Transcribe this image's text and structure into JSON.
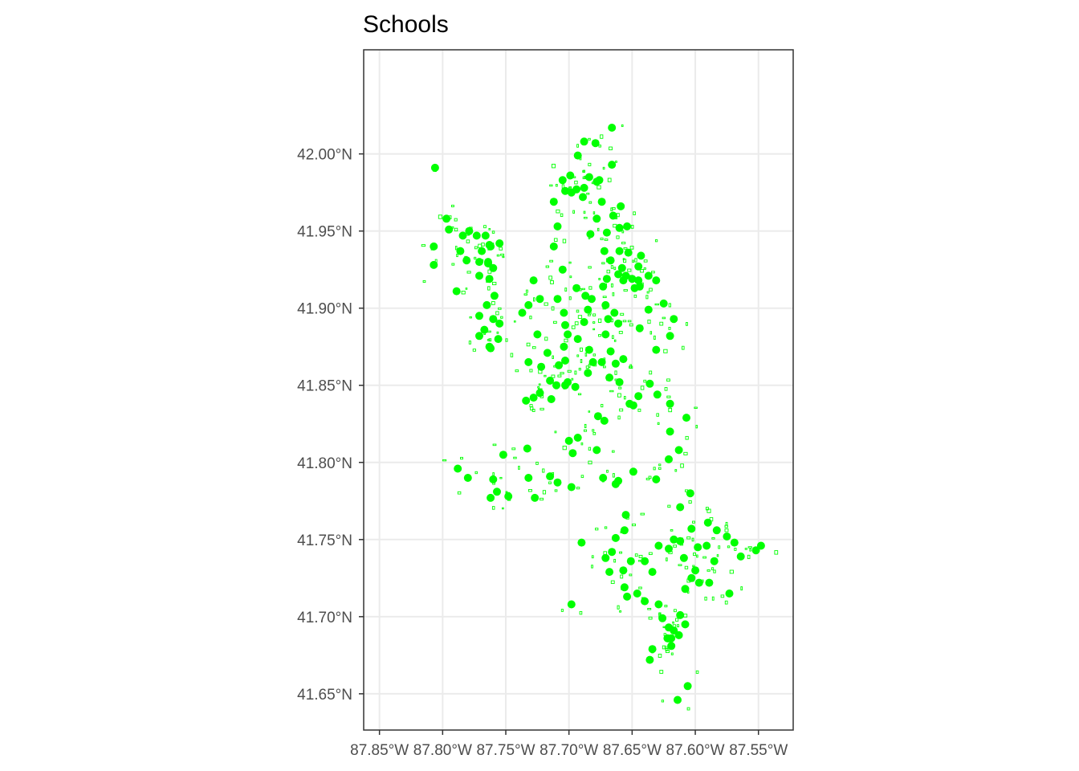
{
  "chart_data": {
    "type": "scatter",
    "title": "Schools",
    "xlabel": "",
    "ylabel": "",
    "xlim": [
      -87.8625,
      -87.5225
    ],
    "ylim": [
      41.6265,
      42.0675
    ],
    "x_ticks": [
      {
        "value": -87.85,
        "label": "87.85°W"
      },
      {
        "value": -87.8,
        "label": "87.80°W"
      },
      {
        "value": -87.75,
        "label": "87.75°W"
      },
      {
        "value": -87.7,
        "label": "87.70°W"
      },
      {
        "value": -87.65,
        "label": "87.65°W"
      },
      {
        "value": -87.6,
        "label": "87.60°W"
      },
      {
        "value": -87.55,
        "label": "87.55°W"
      }
    ],
    "y_ticks": [
      {
        "value": 42.0,
        "label": "42.00°N"
      },
      {
        "value": 41.95,
        "label": "41.95°N"
      },
      {
        "value": 41.9,
        "label": "41.90°N"
      },
      {
        "value": 41.85,
        "label": "41.85°N"
      },
      {
        "value": 41.8,
        "label": "41.80°N"
      },
      {
        "value": 41.75,
        "label": "41.75°N"
      },
      {
        "value": 41.7,
        "label": "41.70°N"
      },
      {
        "value": 41.65,
        "label": "41.65°N"
      }
    ],
    "grid": true,
    "legend": "none",
    "color": "#00ff00",
    "points": [
      [
        -87.806,
        41.991
      ],
      [
        -87.797,
        41.958
      ],
      [
        -87.795,
        41.951
      ],
      [
        -87.807,
        41.94
      ],
      [
        -87.807,
        41.928
      ],
      [
        -87.786,
        41.937
      ],
      [
        -87.784,
        41.947
      ],
      [
        -87.779,
        41.95
      ],
      [
        -87.773,
        41.947
      ],
      [
        -87.766,
        41.947
      ],
      [
        -87.762,
        41.94
      ],
      [
        -87.763,
        41.941
      ],
      [
        -87.771,
        41.93
      ],
      [
        -87.769,
        41.937
      ],
      [
        -87.755,
        41.942
      ],
      [
        -87.764,
        41.93
      ],
      [
        -87.76,
        41.926
      ],
      [
        -87.763,
        41.919
      ],
      [
        -87.771,
        41.921
      ],
      [
        -87.781,
        41.931
      ],
      [
        -87.789,
        41.911
      ],
      [
        -87.764,
        41.929
      ],
      [
        -87.759,
        41.908
      ],
      [
        -87.765,
        41.902
      ],
      [
        -87.76,
        41.893
      ],
      [
        -87.771,
        41.895
      ],
      [
        -87.771,
        41.882
      ],
      [
        -87.767,
        41.886
      ],
      [
        -87.763,
        41.875
      ],
      [
        -87.762,
        41.874
      ],
      [
        -87.755,
        41.89
      ],
      [
        -87.756,
        41.88
      ],
      [
        -87.666,
        42.017
      ],
      [
        -87.679,
        42.007
      ],
      [
        -87.688,
        42.008
      ],
      [
        -87.693,
        41.999
      ],
      [
        -87.666,
        41.993
      ],
      [
        -87.699,
        41.986
      ],
      [
        -87.694,
        41.977
      ],
      [
        -87.688,
        41.978
      ],
      [
        -87.684,
        41.985
      ],
      [
        -87.676,
        41.983
      ],
      [
        -87.705,
        41.983
      ],
      [
        -87.703,
        41.976
      ],
      [
        -87.698,
        41.975
      ],
      [
        -87.689,
        41.972
      ],
      [
        -87.678,
        41.982
      ],
      [
        -87.659,
        41.966
      ],
      [
        -87.665,
        41.96
      ],
      [
        -87.674,
        41.969
      ],
      [
        -87.678,
        41.958
      ],
      [
        -87.683,
        41.948
      ],
      [
        -87.67,
        41.949
      ],
      [
        -87.66,
        41.952
      ],
      [
        -87.654,
        41.953
      ],
      [
        -87.672,
        41.937
      ],
      [
        -87.66,
        41.937
      ],
      [
        -87.661,
        41.922
      ],
      [
        -87.667,
        41.931
      ],
      [
        -87.658,
        41.926
      ],
      [
        -87.655,
        41.921
      ],
      [
        -87.65,
        41.919
      ],
      [
        -87.645,
        41.927
      ],
      [
        -87.643,
        41.934
      ],
      [
        -87.653,
        41.936
      ],
      [
        -87.645,
        41.918
      ],
      [
        -87.637,
        41.921
      ],
      [
        -87.648,
        41.913
      ],
      [
        -87.644,
        41.914
      ],
      [
        -87.657,
        41.918
      ],
      [
        -87.67,
        41.919
      ],
      [
        -87.712,
        41.969
      ],
      [
        -87.709,
        41.953
      ],
      [
        -87.712,
        41.94
      ],
      [
        -87.705,
        41.925
      ],
      [
        -87.709,
        41.906
      ],
      [
        -87.704,
        41.897
      ],
      [
        -87.694,
        41.913
      ],
      [
        -87.687,
        41.908
      ],
      [
        -87.685,
        41.899
      ],
      [
        -87.682,
        41.906
      ],
      [
        -87.673,
        41.914
      ],
      [
        -87.671,
        41.902
      ],
      [
        -87.669,
        41.893
      ],
      [
        -87.664,
        41.897
      ],
      [
        -87.661,
        41.89
      ],
      [
        -87.671,
        41.883
      ],
      [
        -87.688,
        41.891
      ],
      [
        -87.693,
        41.88
      ],
      [
        -87.684,
        41.873
      ],
      [
        -87.681,
        41.865
      ],
      [
        -87.674,
        41.865
      ],
      [
        -87.667,
        41.872
      ],
      [
        -87.663,
        41.864
      ],
      [
        -87.657,
        41.867
      ],
      [
        -87.685,
        41.858
      ],
      [
        -87.668,
        41.855
      ],
      [
        -87.66,
        41.852
      ],
      [
        -87.644,
        41.887
      ],
      [
        -87.631,
        41.873
      ],
      [
        -87.62,
        41.882
      ],
      [
        -87.617,
        41.893
      ],
      [
        -87.637,
        41.899
      ],
      [
        -87.625,
        41.903
      ],
      [
        -87.631,
        41.918
      ],
      [
        -87.723,
        41.906
      ],
      [
        -87.728,
        41.918
      ],
      [
        -87.732,
        41.902
      ],
      [
        -87.737,
        41.897
      ],
      [
        -87.725,
        41.883
      ],
      [
        -87.732,
        41.865
      ],
      [
        -87.722,
        41.862
      ],
      [
        -87.717,
        41.871
      ],
      [
        -87.715,
        41.853
      ],
      [
        -87.708,
        41.863
      ],
      [
        -87.703,
        41.866
      ],
      [
        -87.704,
        41.875
      ],
      [
        -87.701,
        41.883
      ],
      [
        -87.703,
        41.889
      ],
      [
        -87.701,
        41.852
      ],
      [
        -87.695,
        41.849
      ],
      [
        -87.703,
        41.85
      ],
      [
        -87.71,
        41.85
      ],
      [
        -87.723,
        41.845
      ],
      [
        -87.728,
        41.842
      ],
      [
        -87.734,
        41.84
      ],
      [
        -87.714,
        41.841
      ],
      [
        -87.652,
        41.838
      ],
      [
        -87.645,
        41.843
      ],
      [
        -87.636,
        41.851
      ],
      [
        -87.63,
        41.844
      ],
      [
        -87.62,
        41.838
      ],
      [
        -87.607,
        41.829
      ],
      [
        -87.62,
        41.82
      ],
      [
        -87.613,
        41.808
      ],
      [
        -87.621,
        41.802
      ],
      [
        -87.649,
        41.837
      ],
      [
        -87.677,
        41.83
      ],
      [
        -87.672,
        41.827
      ],
      [
        -87.678,
        41.808
      ],
      [
        -87.693,
        41.816
      ],
      [
        -87.7,
        41.814
      ],
      [
        -87.697,
        41.806
      ],
      [
        -87.733,
        41.809
      ],
      [
        -87.752,
        41.805
      ],
      [
        -87.788,
        41.796
      ],
      [
        -87.78,
        41.79
      ],
      [
        -87.76,
        41.789
      ],
      [
        -87.757,
        41.781
      ],
      [
        -87.748,
        41.778
      ],
      [
        -87.762,
        41.777
      ],
      [
        -87.727,
        41.777
      ],
      [
        -87.715,
        41.791
      ],
      [
        -87.709,
        41.787
      ],
      [
        -87.698,
        41.784
      ],
      [
        -87.673,
        41.79
      ],
      [
        -87.663,
        41.786
      ],
      [
        -87.661,
        41.788
      ],
      [
        -87.649,
        41.794
      ],
      [
        -87.631,
        41.789
      ],
      [
        -87.604,
        41.78
      ],
      [
        -87.612,
        41.771
      ],
      [
        -87.603,
        41.757
      ],
      [
        -87.655,
        41.766
      ],
      [
        -87.656,
        41.756
      ],
      [
        -87.663,
        41.751
      ],
      [
        -87.666,
        41.742
      ],
      [
        -87.671,
        41.738
      ],
      [
        -87.668,
        41.729
      ],
      [
        -87.657,
        41.73
      ],
      [
        -87.651,
        41.736
      ],
      [
        -87.64,
        41.736
      ],
      [
        -87.634,
        41.729
      ],
      [
        -87.629,
        41.746
      ],
      [
        -87.621,
        41.744
      ],
      [
        -87.617,
        41.75
      ],
      [
        -87.612,
        41.749
      ],
      [
        -87.609,
        41.738
      ],
      [
        -87.598,
        41.745
      ],
      [
        -87.591,
        41.746
      ],
      [
        -87.583,
        41.756
      ],
      [
        -87.59,
        41.761
      ],
      [
        -87.575,
        41.752
      ],
      [
        -87.569,
        41.748
      ],
      [
        -87.585,
        41.736
      ],
      [
        -87.6,
        41.73
      ],
      [
        -87.603,
        41.725
      ],
      [
        -87.608,
        41.718
      ],
      [
        -87.597,
        41.722
      ],
      [
        -87.589,
        41.722
      ],
      [
        -87.573,
        41.715
      ],
      [
        -87.564,
        41.739
      ],
      [
        -87.552,
        41.743
      ],
      [
        -87.548,
        41.746
      ],
      [
        -87.629,
        41.708
      ],
      [
        -87.64,
        41.71
      ],
      [
        -87.646,
        41.715
      ],
      [
        -87.654,
        41.713
      ],
      [
        -87.656,
        41.719
      ],
      [
        -87.69,
        41.748
      ],
      [
        -87.698,
        41.708
      ],
      [
        -87.732,
        41.79
      ],
      [
        -87.626,
        41.699
      ],
      [
        -87.621,
        41.693
      ],
      [
        -87.617,
        41.691
      ],
      [
        -87.622,
        41.686
      ],
      [
        -87.619,
        41.681
      ],
      [
        -87.613,
        41.688
      ],
      [
        -87.608,
        41.695
      ],
      [
        -87.612,
        41.701
      ],
      [
        -87.619,
        41.686
      ],
      [
        -87.634,
        41.679
      ],
      [
        -87.636,
        41.672
      ],
      [
        -87.606,
        41.655
      ],
      [
        -87.614,
        41.646
      ]
    ]
  }
}
